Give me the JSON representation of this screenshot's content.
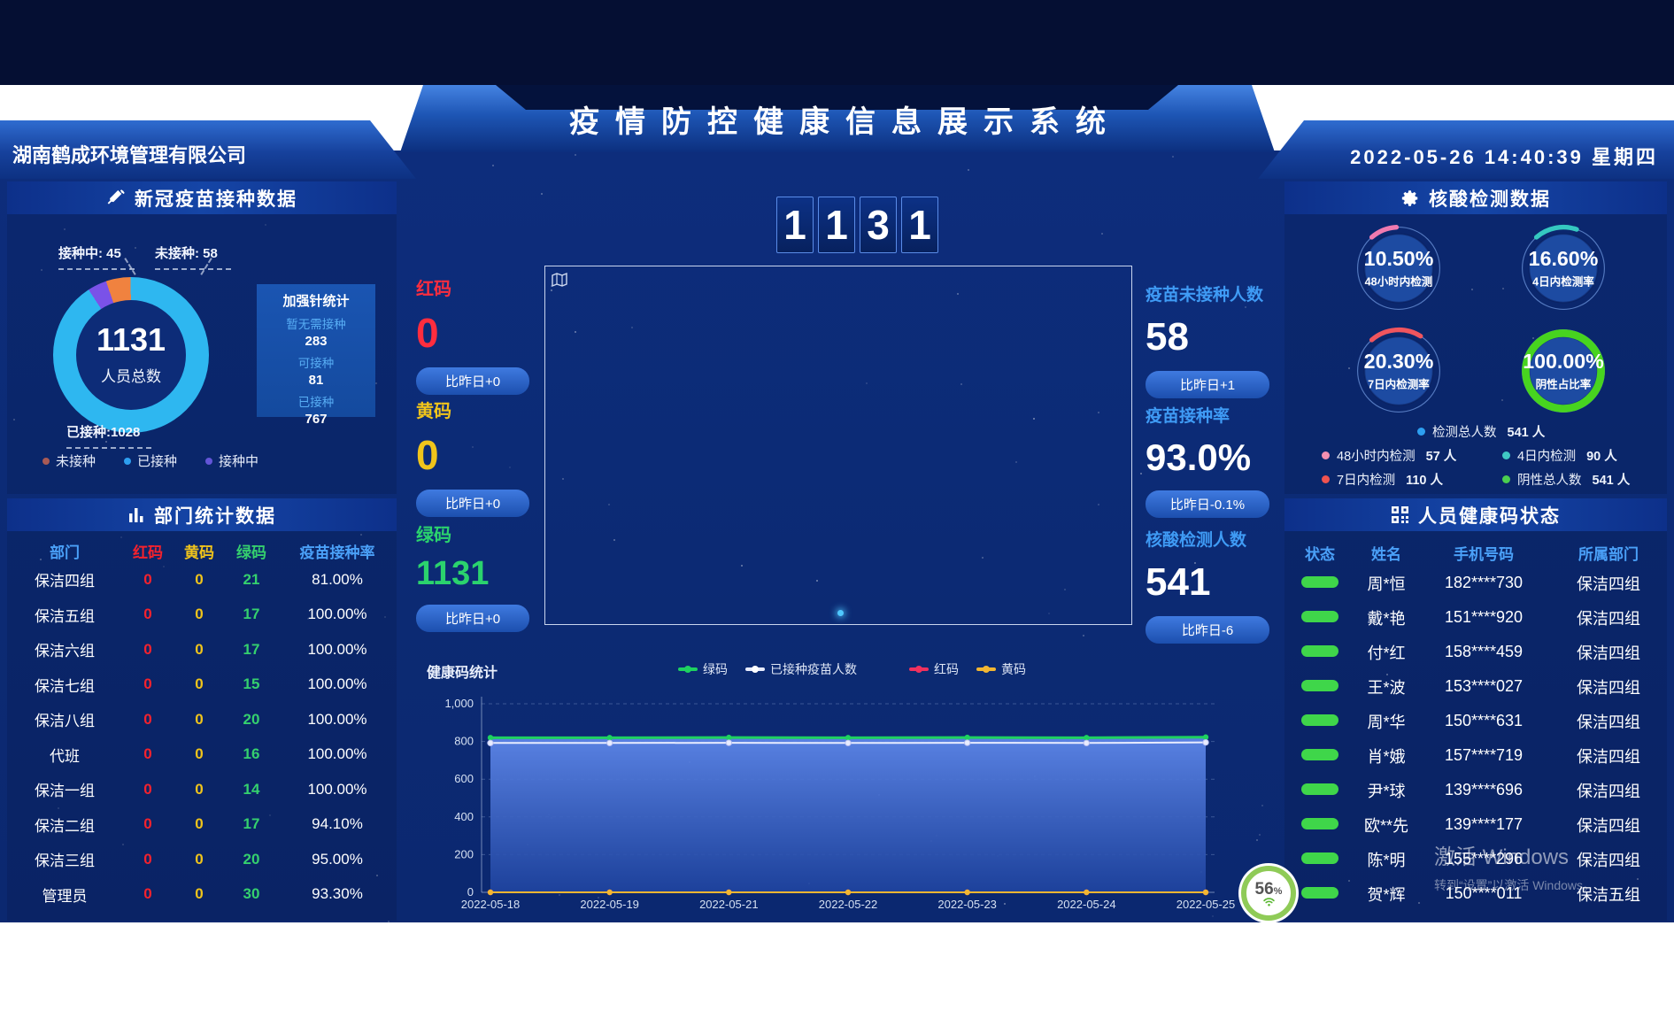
{
  "header": {
    "company": "湖南鹤成环境管理有限公司",
    "title": "疫情防控健康信息展示系统",
    "datetime": "2022-05-26 14:40:39 星期四"
  },
  "vaccine_panel": {
    "title": "新冠疫苗接种数据",
    "total": "1131",
    "total_label": "人员总数",
    "callouts": {
      "vaccinating": "接种中: 45",
      "unvaccinated": "未接种: 58",
      "vaccinated": "已接种:1028"
    },
    "slices": [
      {
        "name": "接种中",
        "value": 45,
        "color": "#7a52e8"
      },
      {
        "name": "未接种",
        "value": 58,
        "color": "#f0823f"
      },
      {
        "name": "已接种",
        "value": 1028,
        "color": "#2eb7f0"
      }
    ],
    "legend": [
      {
        "label": "未接种",
        "color": "#a85a55"
      },
      {
        "label": "已接种",
        "color": "#2d9ff0"
      },
      {
        "label": "接种中",
        "color": "#6355d8"
      }
    ],
    "booster": {
      "title": "加强针统计",
      "items": [
        {
          "label": "暂无需接种",
          "value": "283"
        },
        {
          "label": "可接种",
          "value": "81"
        },
        {
          "label": "已接种",
          "value": "767"
        }
      ]
    }
  },
  "dept_panel": {
    "title": "部门统计数据",
    "headers": [
      {
        "label": "部门",
        "color": "#4aa0f8"
      },
      {
        "label": "红码",
        "color": "#f5222d"
      },
      {
        "label": "黄码",
        "color": "#f0c41b"
      },
      {
        "label": "绿码",
        "color": "#35d06e"
      },
      {
        "label": "疫苗接种率",
        "color": "#4aa0f8"
      }
    ],
    "cell_colors": [
      "#ffffff",
      "#f5222d",
      "#f0c41b",
      "#35d06e",
      "#ffffff"
    ],
    "rows": [
      [
        "保洁四组",
        "0",
        "0",
        "21",
        "81.00%"
      ],
      [
        "保洁五组",
        "0",
        "0",
        "17",
        "100.00%"
      ],
      [
        "保洁六组",
        "0",
        "0",
        "17",
        "100.00%"
      ],
      [
        "保洁七组",
        "0",
        "0",
        "15",
        "100.00%"
      ],
      [
        "保洁八组",
        "0",
        "0",
        "20",
        "100.00%"
      ],
      [
        "代班",
        "0",
        "0",
        "16",
        "100.00%"
      ],
      [
        "保洁一组",
        "0",
        "0",
        "14",
        "100.00%"
      ],
      [
        "保洁二组",
        "0",
        "0",
        "17",
        "94.10%"
      ],
      [
        "保洁三组",
        "0",
        "0",
        "20",
        "95.00%"
      ],
      [
        "管理员",
        "0",
        "0",
        "30",
        "93.30%"
      ]
    ]
  },
  "center": {
    "big_number": [
      "1",
      "1",
      "3",
      "1"
    ],
    "left_stats": [
      {
        "label": "红码",
        "value": "0",
        "delta": "比昨日+0",
        "color": "#ff2d3e"
      },
      {
        "label": "黄码",
        "value": "0",
        "delta": "比昨日+0",
        "color": "#f0c41b"
      },
      {
        "label": "绿码",
        "value": "1131",
        "delta": "比昨日+0",
        "color": "#2bd36d"
      }
    ],
    "right_stats": [
      {
        "label": "疫苗未接种人数",
        "value": "58",
        "delta": "比昨日+1"
      },
      {
        "label": "疫苗接种率",
        "value": "93.0%",
        "delta": "比昨日-0.1%"
      },
      {
        "label": "核酸检测人数",
        "value": "541",
        "delta": "比昨日-6"
      }
    ],
    "stat_label_color": "#3f9bf5"
  },
  "nat_panel": {
    "title": "核酸检测数据",
    "gauges": [
      {
        "value": "10.50%",
        "label": "48小时内检测",
        "color": "#f07ab0",
        "pct": 10.5
      },
      {
        "value": "16.60%",
        "label": "4日内检测率",
        "color": "#35c8c0",
        "pct": 16.6
      },
      {
        "value": "20.30%",
        "label": "7日内检测率",
        "color": "#f0555e",
        "pct": 20.3
      },
      {
        "value": "100.00%",
        "label": "阴性占比率",
        "color": "#47d41f",
        "pct": 100
      }
    ],
    "legend": [
      {
        "label": "检测总人数",
        "value": "541 人",
        "color": "#2d9ff0"
      },
      {
        "label": "48小时内检测",
        "value": "57 人",
        "color": "#f48fb1"
      },
      {
        "label": "4日内检测",
        "value": "90 人",
        "color": "#3fc8c4"
      },
      {
        "label": "7日内检测",
        "value": "110 人",
        "color": "#ef5350"
      },
      {
        "label": "阴性总人数",
        "value": "541 人",
        "color": "#4bce4f"
      }
    ]
  },
  "health_panel": {
    "title": "人员健康码状态",
    "headers": [
      "状态",
      "姓名",
      "手机号码",
      "所属部门"
    ],
    "status_color": "#3fd64a",
    "rows": [
      {
        "name": "周*恒",
        "phone": "182****730",
        "dept": "保洁四组"
      },
      {
        "name": "戴*艳",
        "phone": "151****920",
        "dept": "保洁四组"
      },
      {
        "name": "付*红",
        "phone": "158****459",
        "dept": "保洁四组"
      },
      {
        "name": "王*波",
        "phone": "153****027",
        "dept": "保洁四组"
      },
      {
        "name": "周*华",
        "phone": "150****631",
        "dept": "保洁四组"
      },
      {
        "name": "肖*娥",
        "phone": "157****719",
        "dept": "保洁四组"
      },
      {
        "name": "尹*球",
        "phone": "139****696",
        "dept": "保洁四组"
      },
      {
        "name": "欧**先",
        "phone": "139****177",
        "dept": "保洁四组"
      },
      {
        "name": "陈*明",
        "phone": "155****296",
        "dept": "保洁四组"
      },
      {
        "name": "贺*辉",
        "phone": "150****011",
        "dept": "保洁五组"
      }
    ]
  },
  "chart_data": {
    "type": "line",
    "title": "健康码统计",
    "categories": [
      "2022-05-18",
      "2022-05-19",
      "2022-05-21",
      "2022-05-22",
      "2022-05-23",
      "2022-05-24",
      "2022-05-25"
    ],
    "series": [
      {
        "name": "绿码",
        "color": "#1ed160",
        "area": true,
        "values": [
          820,
          820,
          821,
          820,
          821,
          820,
          823
        ]
      },
      {
        "name": "已接种疫苗人数",
        "color": "#e8ecff",
        "values": [
          792,
          792,
          793,
          792,
          793,
          792,
          795
        ]
      },
      {
        "name": "红码",
        "color": "#f0315e",
        "values": [
          0,
          0,
          0,
          0,
          0,
          0,
          0
        ]
      },
      {
        "name": "黄码",
        "color": "#f2b632",
        "values": [
          0,
          0,
          0,
          0,
          0,
          0,
          0
        ]
      }
    ],
    "ylim": [
      0,
      1000
    ],
    "yticks": [
      0,
      200,
      400,
      600,
      800,
      1000
    ],
    "legend_position": "top",
    "grid": "dashed-horizontal"
  },
  "overlay": {
    "badge_value": "56",
    "badge_unit": "%",
    "watermark_line1": "激活 Windows",
    "watermark_line2": "转到“设置”以激活 Windows。"
  }
}
